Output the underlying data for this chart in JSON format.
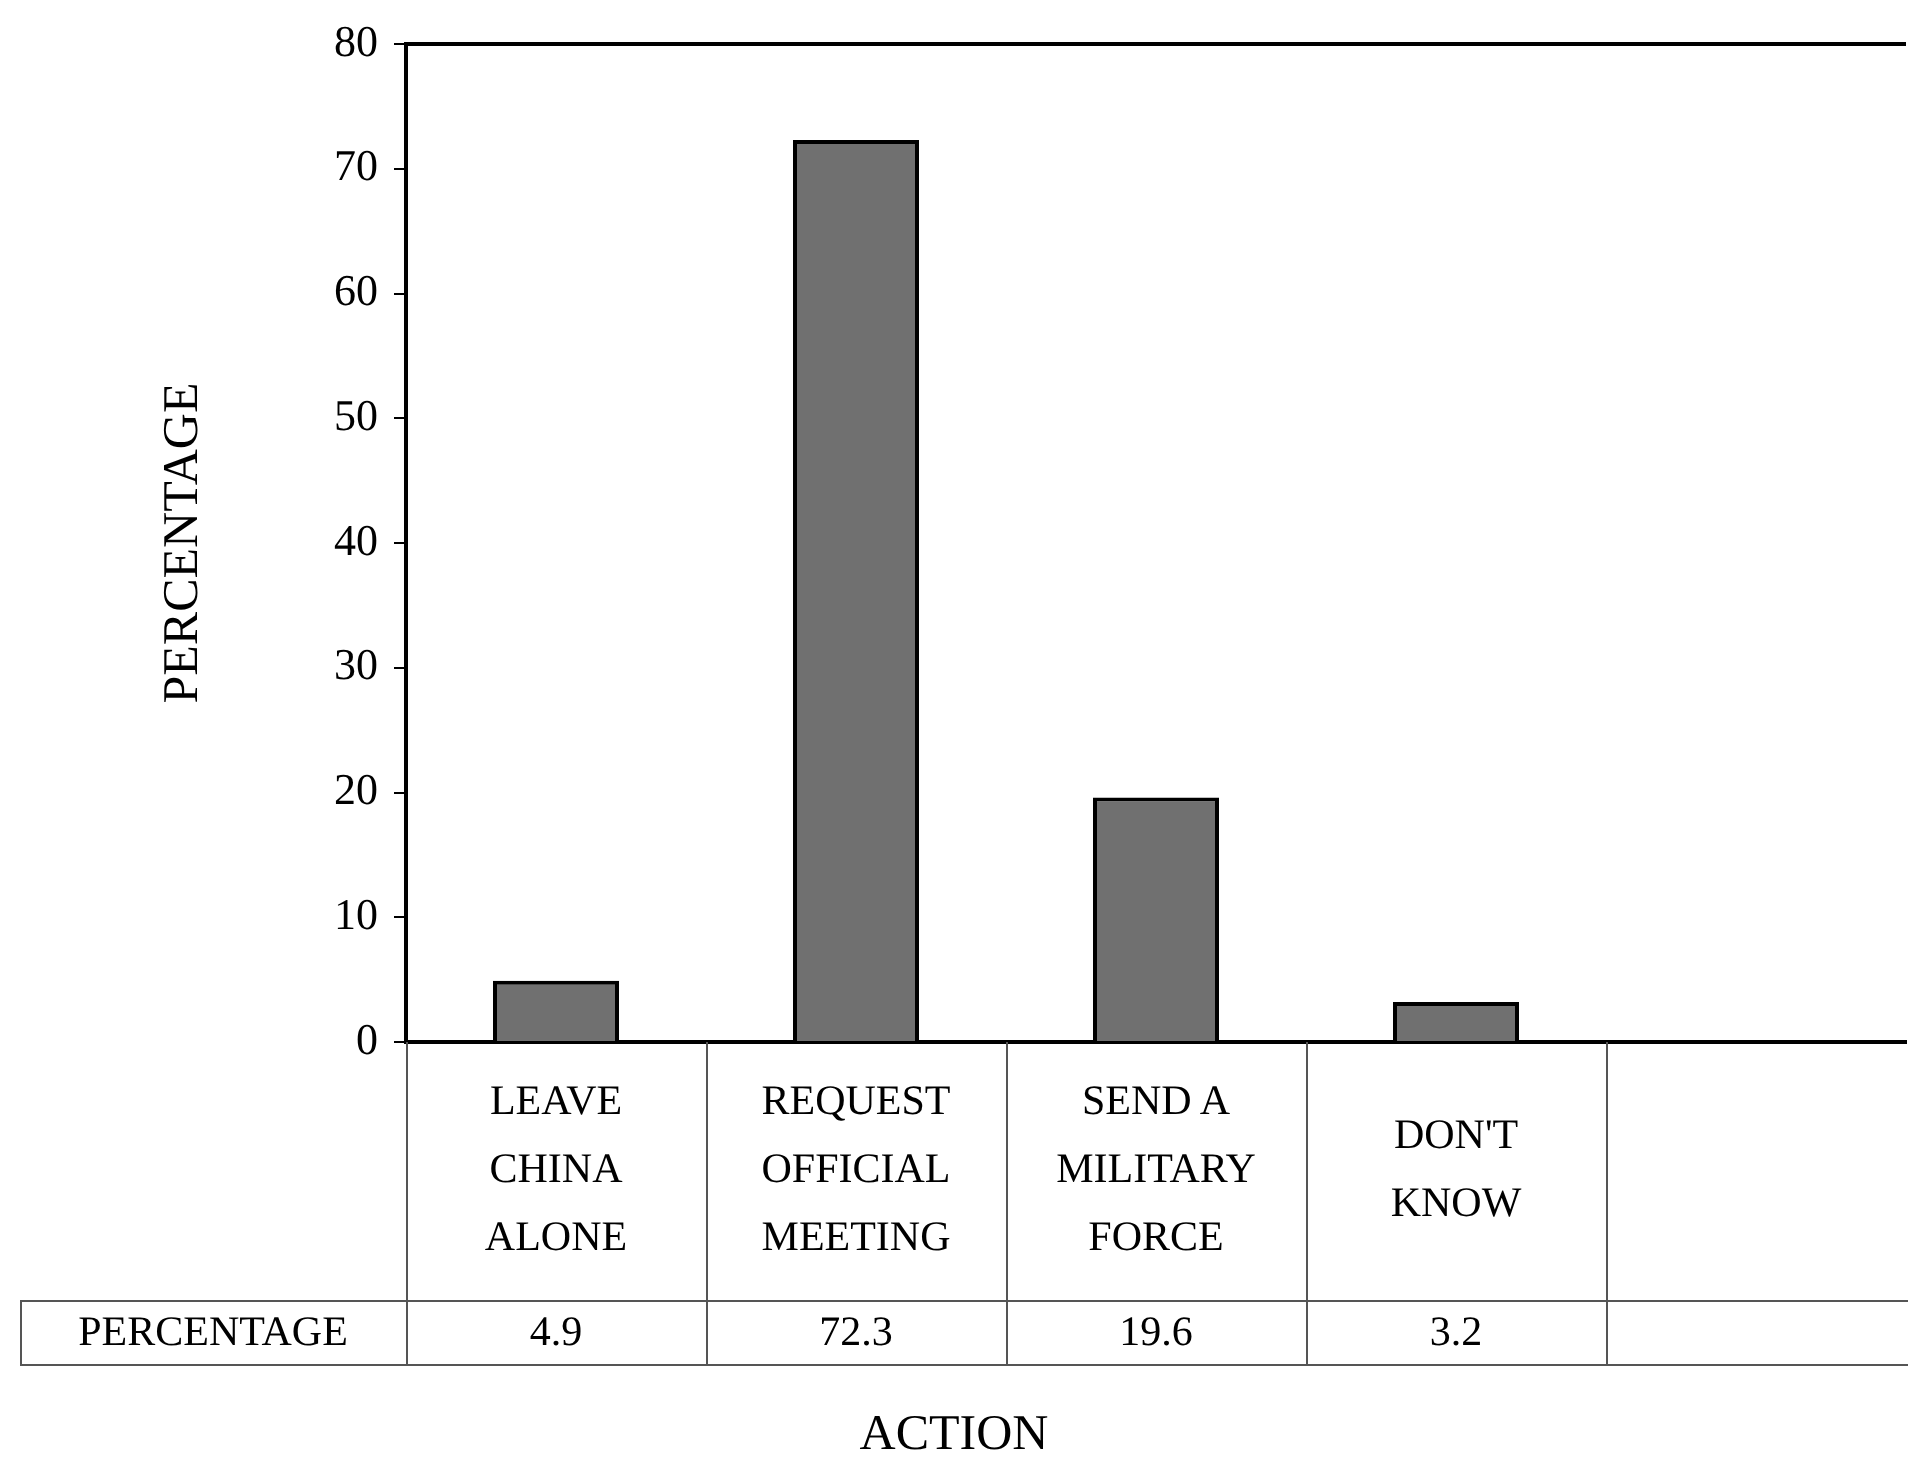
{
  "chart_data": {
    "type": "bar",
    "xlabel": "ACTION",
    "ylabel": "PERCENTAGE",
    "categories": [
      "LEAVE CHINA ALONE",
      "REQUEST OFFICIAL MEETING",
      "SEND A MILITARY FORCE",
      "DON'T KNOW",
      null
    ],
    "series": [
      {
        "name": "PERCENTAGE",
        "color": "#707070",
        "values": [
          4.9,
          72.3,
          19.6,
          3.2,
          null
        ]
      }
    ],
    "ylim": [
      0,
      80
    ],
    "yticks": [
      0,
      10,
      20,
      30,
      40,
      50,
      60,
      70,
      80
    ],
    "data_labels": true
  }
}
